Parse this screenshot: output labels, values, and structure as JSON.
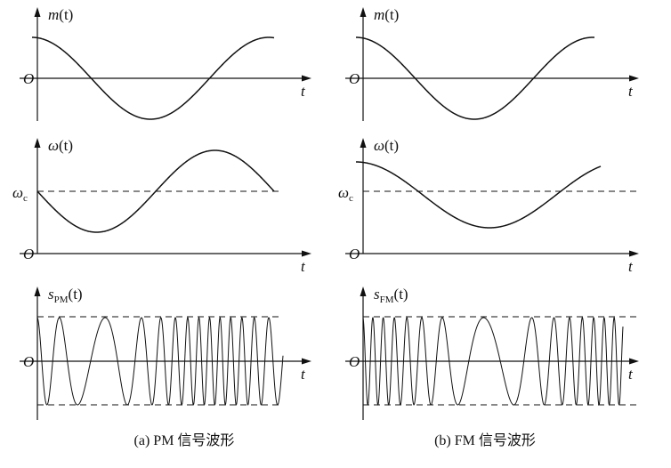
{
  "figure": {
    "columns": [
      {
        "caption": "(a) PM 信号波形",
        "panels": [
          {
            "signal": {
              "symbol": "m",
              "argument": "(t)"
            },
            "origin": "O",
            "axis": "t"
          },
          {
            "signal": {
              "symbol": "ω",
              "argument": "(t)"
            },
            "origin": "O",
            "axis": "t",
            "level": {
              "symbol": "ω",
              "subscript": "c"
            }
          },
          {
            "signal": {
              "symbol": "s",
              "subscript": "PM",
              "argument": "(t)"
            },
            "origin": "O",
            "axis": "t"
          }
        ]
      },
      {
        "caption": "(b) FM 信号波形",
        "panels": [
          {
            "signal": {
              "symbol": "m",
              "argument": "(t)"
            },
            "origin": "O",
            "axis": "t"
          },
          {
            "signal": {
              "symbol": "ω",
              "argument": "(t)"
            },
            "origin": "O",
            "axis": "t",
            "level": {
              "symbol": "ω",
              "subscript": "c"
            }
          },
          {
            "signal": {
              "symbol": "s",
              "subscript": "FM",
              "argument": "(t)"
            },
            "origin": "O",
            "axis": "t"
          }
        ]
      }
    ]
  }
}
